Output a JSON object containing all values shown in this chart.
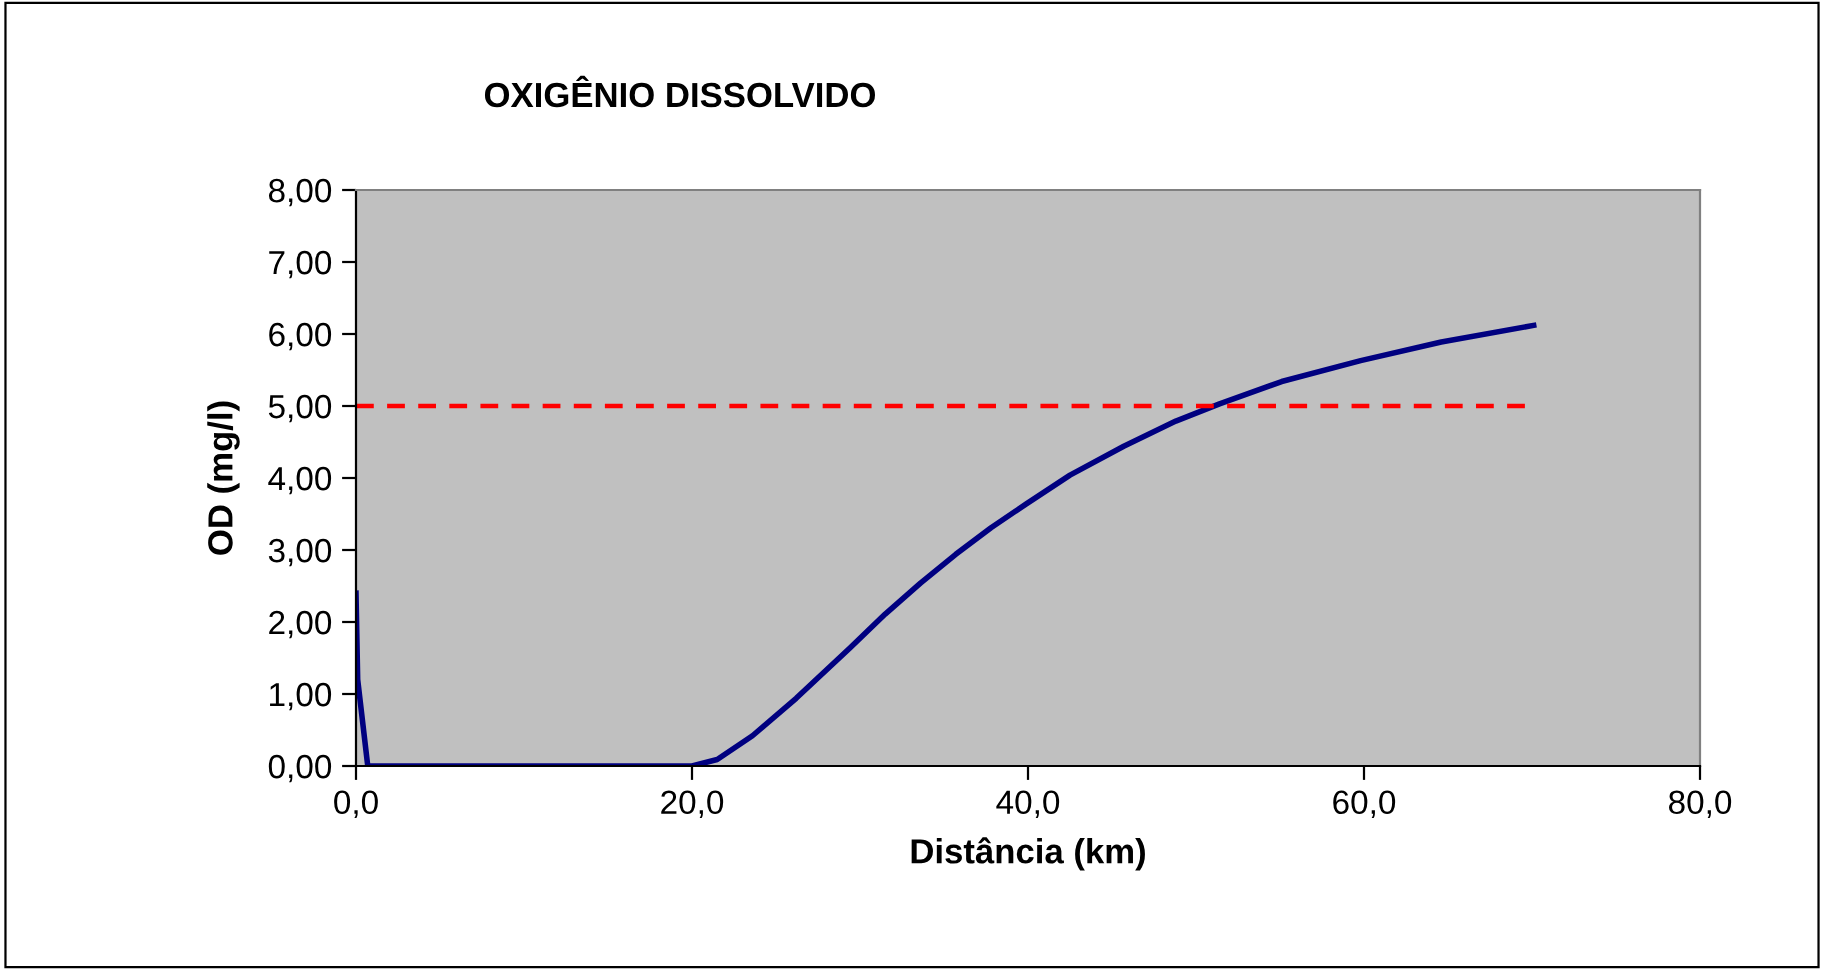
{
  "chart_data": {
    "type": "line",
    "title": "OXIGÊNIO DISSOLVIDO",
    "xlabel": "Distância (km)",
    "ylabel": "OD (mg/l)",
    "series": [
      {
        "color": "#000080",
        "x": [
          0,
          0.1,
          0.7,
          20.0,
          21.5,
          23.6,
          26.2,
          29.4,
          31.5,
          33.6,
          35.7,
          37.8,
          39.9,
          42.5,
          45.7,
          48.8,
          51.4,
          55.1,
          59.8,
          64.6,
          70.1
        ],
        "values": [
          2.4,
          1.2,
          0,
          0,
          0.09,
          0.42,
          0.94,
          1.64,
          2.11,
          2.54,
          2.94,
          3.31,
          3.64,
          4.04,
          4.44,
          4.79,
          5.03,
          5.34,
          5.63,
          5.89,
          6.12
        ]
      }
    ],
    "xlim": [
      0,
      80
    ],
    "xticks": [
      {
        "value": 0,
        "label": "0,0"
      },
      {
        "value": 20,
        "label": "20,0"
      },
      {
        "value": 40,
        "label": "40,0"
      },
      {
        "value": 60,
        "label": "60,0"
      },
      {
        "value": 80,
        "label": "80,0"
      }
    ],
    "ylim": [
      0,
      8
    ],
    "yticks": [
      {
        "value": 0,
        "label": "0,00"
      },
      {
        "value": 1,
        "label": "1,00"
      },
      {
        "value": 2,
        "label": "2,00"
      },
      {
        "value": 3,
        "label": "3,00"
      },
      {
        "value": 4,
        "label": "4,00"
      },
      {
        "value": 5,
        "label": "5,00"
      },
      {
        "value": 6,
        "label": "6,00"
      },
      {
        "value": 7,
        "label": "7,00"
      },
      {
        "value": 8,
        "label": "8,00"
      }
    ],
    "ref_lines": [
      {
        "axis": "y",
        "value": 5,
        "color": "#ff0000",
        "line_style": "dashed"
      }
    ],
    "grid": false,
    "legend": false,
    "marker": "none",
    "line_style": "solid"
  }
}
